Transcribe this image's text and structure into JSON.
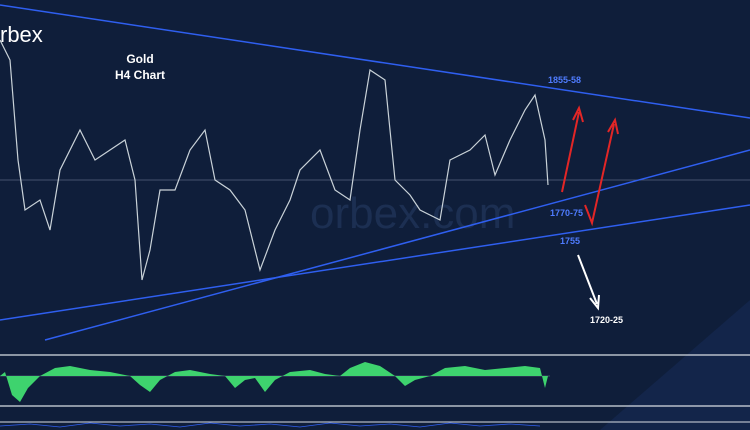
{
  "logo": "rbex",
  "title": "Gold",
  "subtitle": "H4 Chart",
  "watermark": "orbex.com",
  "levels": [
    "1855-58",
    "1770-75",
    "1755",
    "1720-25"
  ]
}
